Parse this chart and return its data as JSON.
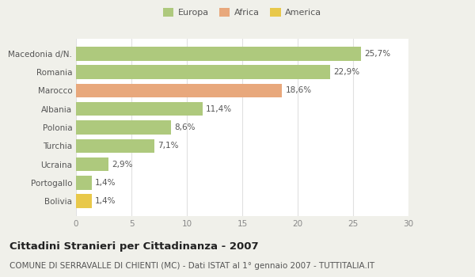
{
  "categories": [
    "Macedonia d/N.",
    "Romania",
    "Marocco",
    "Albania",
    "Polonia",
    "Turchia",
    "Ucraina",
    "Portogallo",
    "Bolivia"
  ],
  "values": [
    25.7,
    22.9,
    18.6,
    11.4,
    8.6,
    7.1,
    2.9,
    1.4,
    1.4
  ],
  "labels": [
    "25,7%",
    "22,9%",
    "18,6%",
    "11,4%",
    "8,6%",
    "7,1%",
    "2,9%",
    "1,4%",
    "1,4%"
  ],
  "bar_colors": [
    "#aec97d",
    "#aec97d",
    "#e8a87c",
    "#aec97d",
    "#aec97d",
    "#aec97d",
    "#aec97d",
    "#aec97d",
    "#e8c84a"
  ],
  "legend_labels": [
    "Europa",
    "Africa",
    "America"
  ],
  "legend_colors": [
    "#aec97d",
    "#e8a87c",
    "#e8c84a"
  ],
  "xlim": [
    0,
    30
  ],
  "xticks": [
    0,
    5,
    10,
    15,
    20,
    25,
    30
  ],
  "title": "Cittadini Stranieri per Cittadinanza - 2007",
  "subtitle": "COMUNE DI SERRAVALLE DI CHIENTI (MC) - Dati ISTAT al 1° gennaio 2007 - TUTTITALIA.IT",
  "fig_bg_color": "#f0f0ea",
  "ax_bg_color": "#ffffff",
  "bar_height": 0.75,
  "label_fontsize": 7.5,
  "title_fontsize": 9.5,
  "subtitle_fontsize": 7.5,
  "ytick_fontsize": 7.5,
  "xtick_fontsize": 7.5
}
